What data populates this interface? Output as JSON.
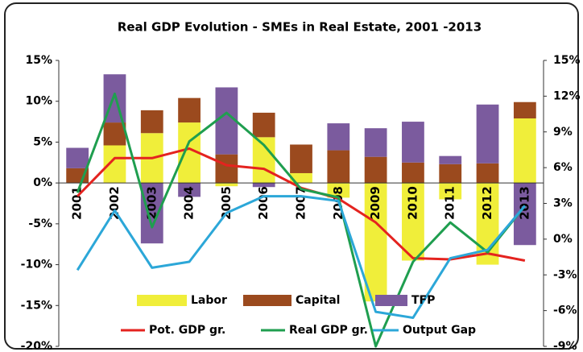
{
  "chart_data": {
    "type": "bar",
    "stacked": true,
    "title": "Real GDP Evolution - SMEs in Real Estate, 2001 -2013",
    "categories": [
      "2001",
      "2002",
      "2003",
      "2004",
      "2005",
      "2006",
      "2007",
      "2008",
      "2009",
      "2010",
      "2011",
      "2012",
      "2013"
    ],
    "series": [
      {
        "name": "Labor",
        "type": "bar",
        "color": "#f0ee3a",
        "values": [
          0,
          4.6,
          6.1,
          7.4,
          -0.4,
          5.6,
          1.2,
          -1.8,
          -14.5,
          -9.5,
          -2,
          -10,
          7.9
        ]
      },
      {
        "name": "Capital",
        "type": "bar",
        "color": "#9b4a1e",
        "values": [
          1.8,
          2.8,
          2.8,
          3.0,
          3.5,
          3.0,
          3.5,
          4.0,
          3.2,
          2.5,
          2.3,
          2.4,
          2.0
        ]
      },
      {
        "name": "TFP",
        "type": "bar",
        "color": "#7b5b9e",
        "values": [
          2.5,
          5.9,
          -7.4,
          -1.7,
          8.2,
          -0.5,
          0,
          3.3,
          3.5,
          5,
          1,
          7.2,
          -7.6
        ]
      },
      {
        "name": "Pot. GDP gr.",
        "type": "line",
        "axis": "y2",
        "color": "#e4231f",
        "values": [
          3.6,
          6.8,
          6.8,
          7.6,
          6.2,
          5.9,
          4.3,
          3.4,
          1.4,
          -1.6,
          -1.7,
          -1.2,
          -1.8
        ]
      },
      {
        "name": "Real GDP gr.",
        "type": "line",
        "axis": "y2",
        "color": "#1f9e4f",
        "values": [
          3.9,
          12.2,
          1,
          8.2,
          10.6,
          7.9,
          4.2,
          3.5,
          -9,
          -1.9,
          1.4,
          -1.1,
          2.8
        ]
      },
      {
        "name": "Output Gap",
        "type": "line",
        "axis": "y2",
        "color": "#2ca7d8",
        "values": [
          -2.6,
          2.4,
          -2.4,
          -1.9,
          2.2,
          3.6,
          3.6,
          3.2,
          -6.1,
          -6.6,
          -1.6,
          -0.9,
          2.8
        ]
      }
    ],
    "ylim": [
      -20,
      15
    ],
    "yticks": [
      {
        "value": 15,
        "label": "15%"
      },
      {
        "value": 10,
        "label": "10%"
      },
      {
        "value": 5,
        "label": "5%"
      },
      {
        "value": 0,
        "label": "0%"
      },
      {
        "value": -5,
        "label": "-5%"
      },
      {
        "value": -10,
        "label": "-10%"
      },
      {
        "value": -15,
        "label": "-15%"
      },
      {
        "value": -20,
        "label": "-20%"
      }
    ],
    "y2lim": [
      -9,
      15
    ],
    "y2ticks": [
      {
        "value": 15,
        "label": "15%"
      },
      {
        "value": 12,
        "label": "12%"
      },
      {
        "value": 9,
        "label": "9%"
      },
      {
        "value": 6,
        "label": "6%"
      },
      {
        "value": 3,
        "label": "3%"
      },
      {
        "value": 0,
        "label": "0%"
      },
      {
        "value": -3,
        "label": "-3%"
      },
      {
        "value": -6,
        "label": "-6%"
      },
      {
        "value": -9,
        "label": "-9%"
      }
    ],
    "grid": false
  }
}
